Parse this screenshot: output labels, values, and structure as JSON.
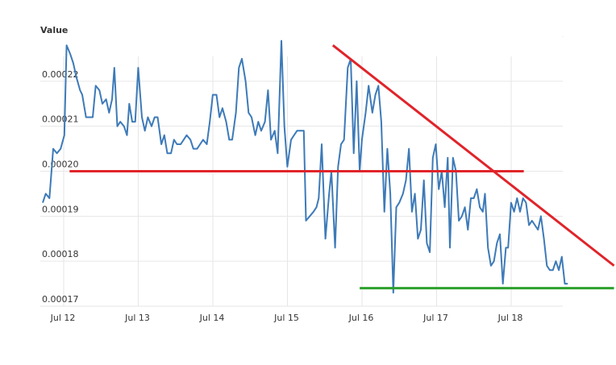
{
  "chart_data": {
    "type": "line",
    "ylabel": "Value",
    "xlabel": "",
    "ylim": [
      0.00017,
      0.00023
    ],
    "xlim": [
      0,
      6.9
    ],
    "grid": true,
    "y_ticks": [
      {
        "value": 0.00017,
        "label": "0.00017"
      },
      {
        "value": 0.00018,
        "label": "0.00018"
      },
      {
        "value": 0.00019,
        "label": "0.00019"
      },
      {
        "value": 0.0002,
        "label": "0.00020"
      },
      {
        "value": 0.00021,
        "label": "0.00021"
      },
      {
        "value": 0.00022,
        "label": "0.00022"
      }
    ],
    "x_ticks": [
      {
        "value": 0,
        "label": "Jul 12"
      },
      {
        "value": 1,
        "label": "Jul 13"
      },
      {
        "value": 2,
        "label": "Jul 14"
      },
      {
        "value": 3,
        "label": "Jul 15"
      },
      {
        "value": 4,
        "label": "Jul 16"
      },
      {
        "value": 5,
        "label": "Jul 17"
      },
      {
        "value": 6,
        "label": "Jul 18"
      }
    ],
    "series": [
      {
        "color": "#3d7ab8",
        "points": [
          [
            0.0,
            0.000193
          ],
          [
            0.04,
            0.000195
          ],
          [
            0.09,
            0.000194
          ],
          [
            0.14,
            0.000205
          ],
          [
            0.19,
            0.000204
          ],
          [
            0.24,
            0.000205
          ],
          [
            0.29,
            0.000208
          ],
          [
            0.32,
            0.000228
          ],
          [
            0.37,
            0.000226
          ],
          [
            0.41,
            0.000224
          ],
          [
            0.45,
            0.000221
          ],
          [
            0.5,
            0.000218
          ],
          [
            0.53,
            0.000217
          ],
          [
            0.58,
            0.000212
          ],
          [
            0.63,
            0.000212
          ],
          [
            0.67,
            0.000212
          ],
          [
            0.71,
            0.000219
          ],
          [
            0.76,
            0.000218
          ],
          [
            0.8,
            0.000215
          ],
          [
            0.85,
            0.000216
          ],
          [
            0.89,
            0.000213
          ],
          [
            0.93,
            0.000216
          ],
          [
            0.96,
            0.000223
          ],
          [
            1.0,
            0.00021
          ],
          [
            1.04,
            0.000211
          ],
          [
            1.09,
            0.00021
          ],
          [
            1.13,
            0.000208
          ],
          [
            1.16,
            0.000215
          ],
          [
            1.2,
            0.000211
          ],
          [
            1.24,
            0.000211
          ],
          [
            1.28,
            0.000223
          ],
          [
            1.33,
            0.000212
          ],
          [
            1.37,
            0.000209
          ],
          [
            1.41,
            0.000212
          ],
          [
            1.46,
            0.00021
          ],
          [
            1.5,
            0.000212
          ],
          [
            1.54,
            0.000212
          ],
          [
            1.59,
            0.000206
          ],
          [
            1.63,
            0.000208
          ],
          [
            1.67,
            0.000204
          ],
          [
            1.72,
            0.000204
          ],
          [
            1.76,
            0.000207
          ],
          [
            1.8,
            0.000206
          ],
          [
            1.85,
            0.000206
          ],
          [
            1.89,
            0.000207
          ],
          [
            1.93,
            0.000208
          ],
          [
            1.98,
            0.000207
          ],
          [
            2.02,
            0.000205
          ],
          [
            2.07,
            0.000205
          ],
          [
            2.11,
            0.000206
          ],
          [
            2.15,
            0.000207
          ],
          [
            2.2,
            0.000206
          ],
          [
            2.24,
            0.000211
          ],
          [
            2.28,
            0.000217
          ],
          [
            2.33,
            0.000217
          ],
          [
            2.37,
            0.000212
          ],
          [
            2.41,
            0.000214
          ],
          [
            2.46,
            0.000211
          ],
          [
            2.5,
            0.000207
          ],
          [
            2.54,
            0.000207
          ],
          [
            2.59,
            0.000213
          ],
          [
            2.63,
            0.000223
          ],
          [
            2.67,
            0.000225
          ],
          [
            2.72,
            0.00022
          ],
          [
            2.76,
            0.000213
          ],
          [
            2.8,
            0.000212
          ],
          [
            2.85,
            0.000208
          ],
          [
            2.89,
            0.000211
          ],
          [
            2.93,
            0.000209
          ],
          [
            2.98,
            0.000211
          ],
          [
            3.02,
            0.000218
          ],
          [
            3.06,
            0.000207
          ],
          [
            3.11,
            0.000209
          ],
          [
            3.15,
            0.000204
          ],
          [
            3.2,
            0.000229
          ],
          [
            3.24,
            0.00021
          ],
          [
            3.28,
            0.000201
          ],
          [
            3.33,
            0.000207
          ],
          [
            3.37,
            0.000208
          ],
          [
            3.41,
            0.000209
          ],
          [
            3.46,
            0.000209
          ],
          [
            3.5,
            0.000209
          ],
          [
            3.53,
            0.000189
          ],
          [
            3.58,
            0.00019
          ],
          [
            3.63,
            0.000191
          ],
          [
            3.67,
            0.000192
          ],
          [
            3.7,
            0.000194
          ],
          [
            3.74,
            0.000206
          ],
          [
            3.79,
            0.000185
          ],
          [
            3.84,
            0.000195
          ],
          [
            3.87,
            0.0002
          ],
          [
            3.92,
            0.000183
          ],
          [
            3.96,
            0.000201
          ],
          [
            4.0,
            0.000206
          ],
          [
            4.04,
            0.000207
          ],
          [
            4.09,
            0.000223
          ],
          [
            4.13,
            0.000225
          ],
          [
            4.17,
            0.000204
          ],
          [
            4.21,
            0.00022
          ],
          [
            4.25,
            0.0002
          ],
          [
            4.28,
            0.000207
          ],
          [
            4.33,
            0.000213
          ],
          [
            4.37,
            0.000219
          ],
          [
            4.42,
            0.000213
          ],
          [
            4.46,
            0.000217
          ],
          [
            4.5,
            0.000219
          ],
          [
            4.54,
            0.000211
          ],
          [
            4.58,
            0.000191
          ],
          [
            4.62,
            0.000205
          ],
          [
            4.66,
            0.000195
          ],
          [
            4.7,
            0.000173
          ],
          [
            4.74,
            0.000192
          ],
          [
            4.78,
            0.000193
          ],
          [
            4.83,
            0.000195
          ],
          [
            4.87,
            0.000198
          ],
          [
            4.91,
            0.000205
          ],
          [
            4.95,
            0.000191
          ],
          [
            4.99,
            0.000195
          ],
          [
            5.03,
            0.000185
          ],
          [
            5.07,
            0.000187
          ],
          [
            5.11,
            0.000198
          ],
          [
            5.15,
            0.000184
          ],
          [
            5.19,
            0.000182
          ],
          [
            5.23,
            0.000203
          ],
          [
            5.27,
            0.000206
          ],
          [
            5.31,
            0.000196
          ],
          [
            5.35,
            0.0002
          ],
          [
            5.39,
            0.000192
          ],
          [
            5.43,
            0.000203
          ],
          [
            5.46,
            0.000183
          ],
          [
            5.5,
            0.000203
          ],
          [
            5.54,
            0.0002
          ],
          [
            5.58,
            0.000189
          ],
          [
            5.62,
            0.00019
          ],
          [
            5.66,
            0.000192
          ],
          [
            5.7,
            0.000187
          ],
          [
            5.74,
            0.000194
          ],
          [
            5.78,
            0.000194
          ],
          [
            5.82,
            0.000196
          ],
          [
            5.86,
            0.000192
          ],
          [
            5.9,
            0.000191
          ],
          [
            5.93,
            0.000195
          ],
          [
            5.97,
            0.000183
          ],
          [
            6.01,
            0.000179
          ],
          [
            6.05,
            0.00018
          ],
          [
            6.09,
            0.000184
          ],
          [
            6.13,
            0.000186
          ],
          [
            6.17,
            0.000175
          ],
          [
            6.21,
            0.000183
          ],
          [
            6.24,
            0.000183
          ],
          [
            6.28,
            0.000193
          ],
          [
            6.32,
            0.000191
          ],
          [
            6.36,
            0.000194
          ],
          [
            6.4,
            0.000191
          ],
          [
            6.44,
            0.000194
          ],
          [
            6.48,
            0.000193
          ],
          [
            6.52,
            0.000188
          ],
          [
            6.56,
            0.000189
          ],
          [
            6.6,
            0.000188
          ],
          [
            6.64,
            0.000187
          ],
          [
            6.68,
            0.00019
          ],
          [
            6.72,
            0.000185
          ],
          [
            6.76,
            0.000179
          ],
          [
            6.8,
            0.000178
          ],
          [
            6.84,
            0.000178
          ],
          [
            6.88,
            0.00018
          ],
          [
            6.92,
            0.000178
          ],
          [
            6.96,
            0.000181
          ],
          [
            7.0,
            0.000175
          ],
          [
            7.04,
            0.000175
          ]
        ]
      }
    ],
    "annotations": [
      {
        "kind": "trendline",
        "color": "#e0242a",
        "start": [
          0.36,
          0.0002
        ],
        "end": [
          6.45,
          0.0002
        ]
      },
      {
        "kind": "trendline",
        "color": "#e0242a",
        "start": [
          3.89,
          0.000228
        ],
        "end": [
          7.66,
          0.000179
        ]
      },
      {
        "kind": "trendline",
        "color": "#2ca02c",
        "start": [
          4.25,
          0.000174
        ],
        "end": [
          7.66,
          0.000174
        ]
      }
    ]
  }
}
